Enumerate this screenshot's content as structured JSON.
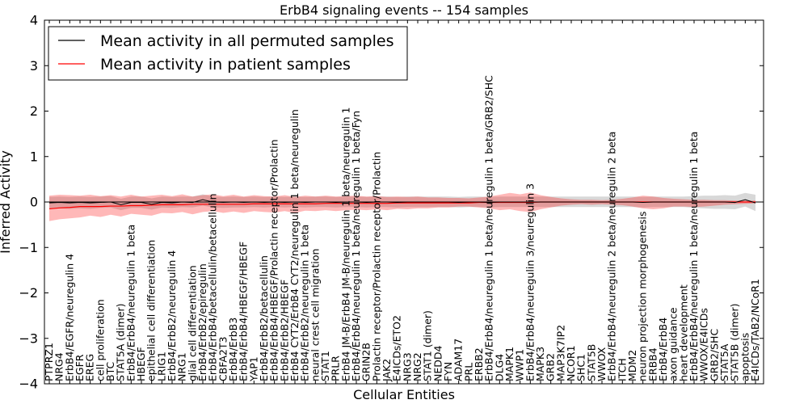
{
  "chart_data": {
    "type": "line",
    "title": "ErbB4 signaling events -- 154 samples",
    "xlabel": "Cellular Entities",
    "ylabel": "Inferred Activity",
    "ylim": [
      -4,
      4
    ],
    "yticks": [
      -4,
      -3,
      -2,
      -1,
      0,
      1,
      2,
      3,
      4
    ],
    "ytick_labels": [
      "−4",
      "−3",
      "−2",
      "−1",
      "0",
      "1",
      "2",
      "3",
      "4"
    ],
    "legend": {
      "position": "top-left",
      "entries": [
        {
          "label": "Mean activity in all permuted samples",
          "color": "#000000"
        },
        {
          "label": "Mean activity in patient samples",
          "color": "#ff0000"
        }
      ]
    },
    "categories": [
      "PTPRZ1",
      "NRG4",
      "ErbB4/EGFR/neuregulin 4",
      "EGFR",
      "EREG",
      "cell proliferation",
      "BTC",
      "STAT5A (dimer)",
      "ErbB4/ErbB4/neuregulin 1 beta",
      "HBEGF",
      "epithelial cell differentiation",
      "LRIG1",
      "ErbB4/ErbB2/neuregulin 4",
      "NRG1",
      "glial cell differentiation",
      "ErbB4/ErbB2/epiregulin",
      "ErbB4/ErbB4/betacellulin/betacellulin",
      "CBFA2T3",
      "ErbB4/ErbB3",
      "ErbB4/ErbB4/HBEGF/HBEGF",
      "YAP1",
      "ErbB4/ErbB2/betacellulin",
      "ErbB4/ErbB4/HBEGF/Prolactin receptor/Prolactin",
      "ErbB4/ErbB2/HBEGF",
      "ErbB4 CYT2/ErbB4 CYT2/neuregulin 1 beta/neuregulin",
      "ErbB4/ErbB2/neuregulin 1 beta",
      "neural crest cell migration",
      "STAT1",
      "PRLR",
      "ErbB4 JM-B/ErbB4 JM-B/neuregulin 1 beta/neuregulin 1",
      "ErbB4/ErbB4/neuregulin 1 beta/neuregulin 1 beta/Fyn",
      "GRIN2B",
      "Prolactin receptor/Prolactin receptor/Prolactin",
      "JAK2",
      "E4ICDs/ETO2",
      "NRG3",
      "NRG2",
      "STAT1 (dimer)",
      "NEDD4",
      "FYN",
      "ADAM17",
      "PRL",
      "ERBB2",
      "ErbB4/ErbB4/neuregulin 1 beta/neuregulin 1 beta/GRB2/SHC",
      "DLG4",
      "MAPK1",
      "WWP1",
      "ErbB4/ErbB4/neuregulin 3/neuregulin 3",
      "MAPK3",
      "GRB2",
      "MAP3K7IP2",
      "NCOR1",
      "SHC1",
      "STAT5B",
      "WWOX",
      "ErbB4/ErbB4/neuregulin 2 beta/neuregulin 2 beta",
      "ITCH",
      "MDM2",
      "neuron projection morphogenesis",
      "ERBB4",
      "ErbB4/ErbB4",
      "axon guidance",
      "heart development",
      "ErbB4/ErbB4/neuregulin 1 beta/neuregulin 1 beta",
      "WWOX/E4ICDs",
      "GRB2/SHC",
      "STAT5A",
      "STAT5B (dimer)",
      "apoptosis",
      "E4ICDs/TAB2/NCoR1"
    ],
    "series": [
      {
        "name": "Mean activity in all permuted samples",
        "color": "#000000",
        "values": [
          -0.02,
          -0.01,
          -0.02,
          -0.01,
          -0.02,
          -0.01,
          0.0,
          -0.06,
          -0.01,
          -0.01,
          -0.05,
          -0.01,
          -0.02,
          0.0,
          -0.01,
          0.05,
          0.0,
          -0.01,
          0.0,
          -0.01,
          0.0,
          -0.01,
          0.0,
          -0.01,
          0.0,
          -0.01,
          0.0,
          0.0,
          -0.01,
          0.0,
          0.0,
          -0.01,
          0.0,
          0.0,
          -0.01,
          0.0,
          0.0,
          0.0,
          0.0,
          0.0,
          -0.01,
          0.0,
          0.0,
          -0.01,
          0.0,
          0.0,
          0.0,
          0.0,
          0.0,
          0.0,
          0.0,
          0.0,
          0.0,
          0.0,
          0.0,
          0.0,
          0.0,
          0.0,
          -0.01,
          0.0,
          0.0,
          0.0,
          0.0,
          0.0,
          0.0,
          0.0,
          0.0,
          -0.01,
          0.05,
          -0.02
        ],
        "band_low": [
          -0.15,
          -0.14,
          -0.15,
          -0.14,
          -0.15,
          -0.13,
          -0.12,
          -0.18,
          -0.13,
          -0.13,
          -0.17,
          -0.12,
          -0.13,
          -0.11,
          -0.12,
          -0.08,
          -0.12,
          -0.13,
          -0.12,
          -0.12,
          -0.11,
          -0.12,
          -0.11,
          -0.12,
          -0.11,
          -0.12,
          -0.11,
          -0.11,
          -0.12,
          -0.11,
          -0.11,
          -0.12,
          -0.11,
          -0.11,
          -0.12,
          -0.11,
          -0.11,
          -0.11,
          -0.11,
          -0.11,
          -0.12,
          -0.11,
          -0.11,
          -0.12,
          -0.11,
          -0.11,
          -0.11,
          -0.11,
          -0.11,
          -0.11,
          -0.11,
          -0.11,
          -0.11,
          -0.11,
          -0.11,
          -0.11,
          -0.11,
          -0.11,
          -0.12,
          -0.11,
          -0.11,
          -0.11,
          -0.11,
          -0.13,
          -0.14,
          -0.15,
          -0.15,
          -0.16,
          -0.1,
          -0.2
        ],
        "band_high": [
          0.11,
          0.12,
          0.11,
          0.12,
          0.11,
          0.12,
          0.13,
          0.07,
          0.12,
          0.12,
          0.08,
          0.12,
          0.11,
          0.12,
          0.12,
          0.17,
          0.12,
          0.11,
          0.12,
          0.11,
          0.12,
          0.11,
          0.12,
          0.11,
          0.12,
          0.11,
          0.12,
          0.12,
          0.11,
          0.12,
          0.12,
          0.11,
          0.12,
          0.12,
          0.11,
          0.12,
          0.12,
          0.12,
          0.12,
          0.12,
          0.11,
          0.12,
          0.12,
          0.11,
          0.12,
          0.12,
          0.12,
          0.12,
          0.12,
          0.12,
          0.12,
          0.12,
          0.12,
          0.12,
          0.12,
          0.12,
          0.12,
          0.12,
          0.11,
          0.12,
          0.12,
          0.12,
          0.12,
          0.13,
          0.14,
          0.14,
          0.15,
          0.14,
          0.2,
          0.16
        ]
      },
      {
        "name": "Mean activity in patient samples",
        "color": "#ff0000",
        "values": [
          -0.15,
          -0.13,
          -0.12,
          -0.1,
          -0.1,
          -0.1,
          -0.09,
          -0.09,
          -0.08,
          -0.08,
          -0.07,
          -0.06,
          -0.06,
          -0.06,
          -0.05,
          -0.05,
          -0.05,
          -0.05,
          -0.05,
          -0.05,
          -0.04,
          -0.04,
          -0.04,
          -0.04,
          -0.04,
          -0.04,
          -0.04,
          -0.03,
          -0.03,
          -0.03,
          -0.03,
          -0.03,
          -0.03,
          -0.03,
          -0.02,
          -0.02,
          -0.02,
          -0.02,
          -0.02,
          -0.02,
          -0.02,
          -0.02,
          -0.01,
          -0.01,
          -0.01,
          -0.01,
          -0.01,
          -0.01,
          0.0,
          0.0,
          0.0,
          0.0,
          0.0,
          0.0,
          0.0,
          0.0,
          0.0,
          0.0,
          0.0,
          0.0,
          0.0,
          0.0,
          0.0,
          0.0,
          0.0,
          0.0,
          0.0,
          0.0,
          0.0,
          0.0
        ],
        "band_low": [
          -0.42,
          -0.38,
          -0.36,
          -0.34,
          -0.3,
          -0.33,
          -0.28,
          -0.32,
          -0.26,
          -0.28,
          -0.3,
          -0.24,
          -0.25,
          -0.22,
          -0.27,
          -0.22,
          -0.2,
          -0.24,
          -0.21,
          -0.24,
          -0.2,
          -0.22,
          -0.23,
          -0.2,
          -0.24,
          -0.19,
          -0.2,
          -0.18,
          -0.2,
          -0.18,
          -0.17,
          -0.18,
          -0.16,
          -0.18,
          -0.15,
          -0.16,
          -0.14,
          -0.14,
          -0.12,
          -0.12,
          -0.1,
          -0.1,
          -0.12,
          -0.14,
          -0.18,
          -0.16,
          -0.2,
          -0.22,
          -0.16,
          -0.12,
          -0.08,
          -0.06,
          -0.05,
          -0.06,
          -0.05,
          -0.06,
          -0.07,
          -0.1,
          -0.14,
          -0.16,
          -0.14,
          -0.1,
          -0.1,
          -0.11,
          -0.1,
          -0.08,
          -0.06,
          -0.05,
          -0.04,
          -0.03
        ],
        "band_high": [
          0.14,
          0.16,
          0.15,
          0.14,
          0.16,
          0.13,
          0.15,
          0.12,
          0.16,
          0.12,
          0.14,
          0.16,
          0.13,
          0.17,
          0.12,
          0.15,
          0.17,
          0.13,
          0.16,
          0.12,
          0.15,
          0.13,
          0.12,
          0.15,
          0.11,
          0.14,
          0.12,
          0.14,
          0.12,
          0.13,
          0.14,
          0.12,
          0.13,
          0.11,
          0.12,
          0.11,
          0.12,
          0.1,
          0.1,
          0.09,
          0.09,
          0.08,
          0.1,
          0.12,
          0.16,
          0.2,
          0.17,
          0.21,
          0.15,
          0.11,
          0.08,
          0.06,
          0.05,
          0.05,
          0.04,
          0.05,
          0.07,
          0.1,
          0.14,
          0.12,
          0.09,
          0.07,
          0.06,
          0.05,
          0.05,
          0.04,
          0.04,
          0.03,
          0.03,
          0.03
        ]
      }
    ]
  }
}
